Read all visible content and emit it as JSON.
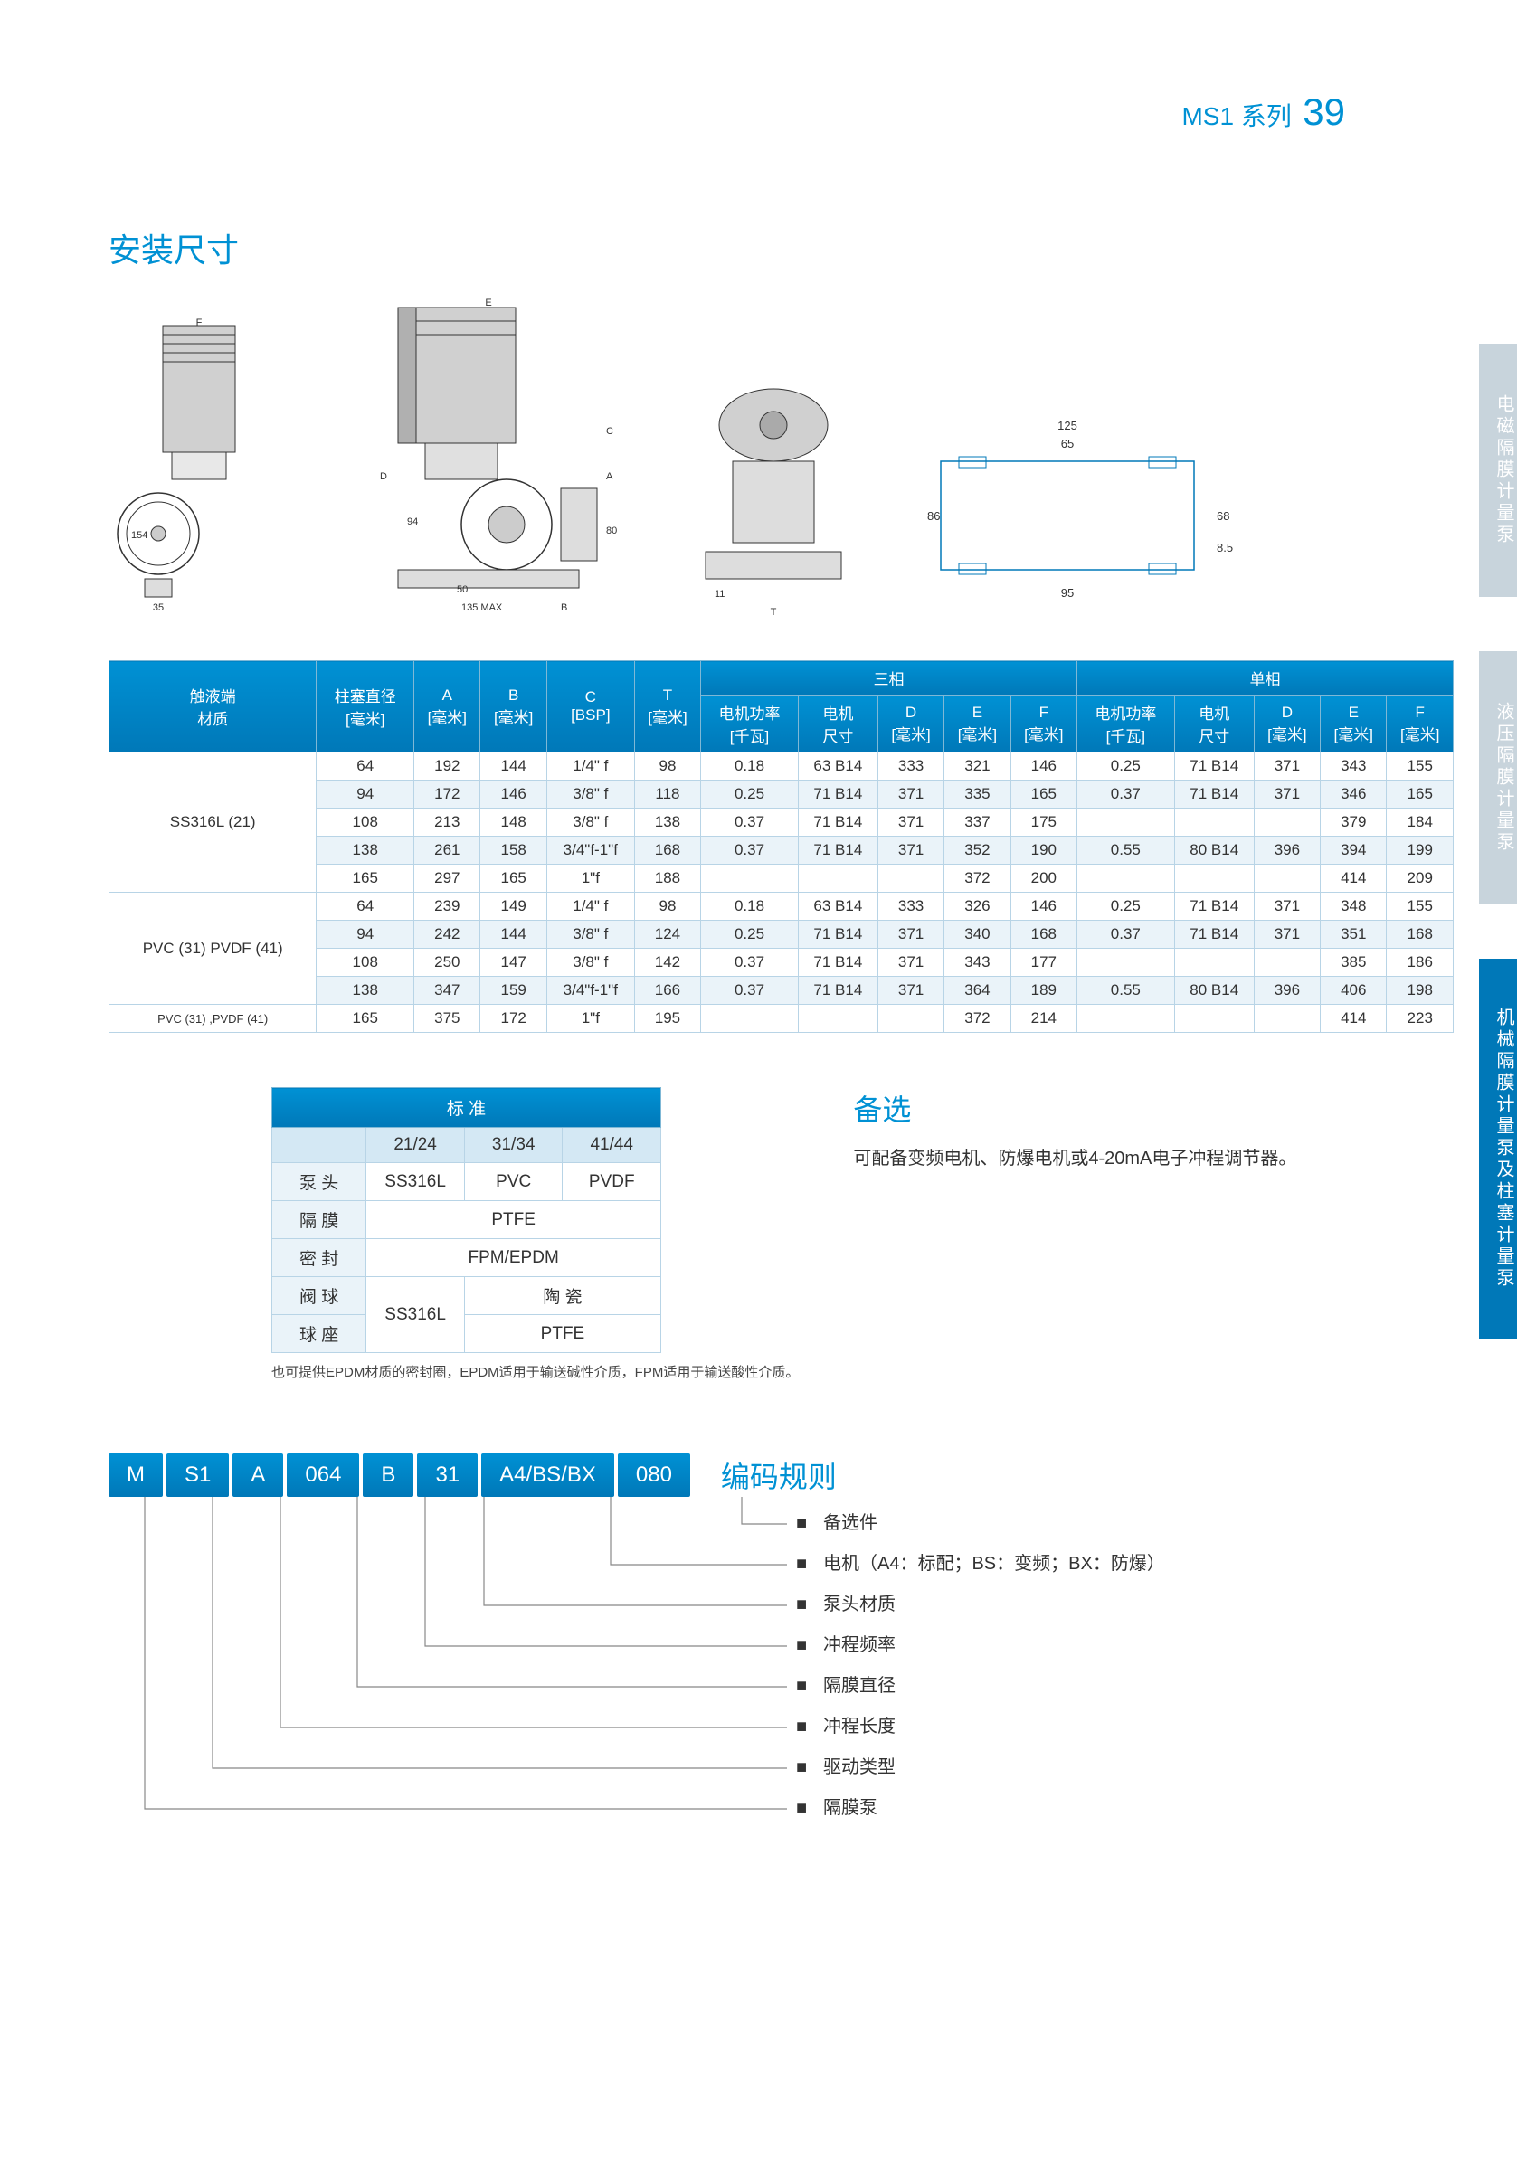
{
  "header": {
    "series": "MS1  系列",
    "page": "39"
  },
  "section_title": "安装尺寸",
  "side_tabs": [
    "电磁隔膜计量泵",
    "液压隔膜计量泵",
    "机械隔膜计量泵及柱塞计量泵"
  ],
  "main_table": {
    "headers": {
      "group_3phase": "三相",
      "group_1phase": "单相",
      "cols": [
        {
          "l1": "触液端",
          "l2": "材质"
        },
        {
          "l1": "柱塞直径",
          "l2": "[毫米]"
        },
        {
          "l1": "A",
          "l2": "[毫米]"
        },
        {
          "l1": "B",
          "l2": "[毫米]"
        },
        {
          "l1": "C",
          "l2": "[BSP]"
        },
        {
          "l1": "T",
          "l2": "[毫米]"
        },
        {
          "l1": "电机功率",
          "l2": "[千瓦]"
        },
        {
          "l1": "电机",
          "l2": "尺寸"
        },
        {
          "l1": "D",
          "l2": "[毫米]"
        },
        {
          "l1": "E",
          "l2": "[毫米]"
        },
        {
          "l1": "F",
          "l2": "[毫米]"
        },
        {
          "l1": "电机功率",
          "l2": "[千瓦]"
        },
        {
          "l1": "电机",
          "l2": "尺寸"
        },
        {
          "l1": "D",
          "l2": "[毫米]"
        },
        {
          "l1": "E",
          "l2": "[毫米]"
        },
        {
          "l1": "F",
          "l2": "[毫米]"
        }
      ]
    },
    "groups": [
      {
        "material": "SS316L (21)",
        "rows": [
          [
            "64",
            "192",
            "144",
            "1/4\" f",
            "98",
            "0.18",
            "63 B14",
            "333",
            "321",
            "146",
            "0.25",
            "71 B14",
            "371",
            "343",
            "155"
          ],
          [
            "94",
            "172",
            "146",
            "3/8\" f",
            "118",
            "0.25",
            "71 B14",
            "371",
            "335",
            "165",
            "0.37",
            "71 B14",
            "371",
            "346",
            "165"
          ],
          [
            "108",
            "213",
            "148",
            "3/8\" f",
            "138",
            "0.37",
            "71 B14",
            "371",
            "337",
            "175",
            "",
            "",
            "",
            "379",
            "184"
          ],
          [
            "138",
            "261",
            "158",
            "3/4\"f-1\"f",
            "168",
            "0.37",
            "71 B14",
            "371",
            "352",
            "190",
            "0.55",
            "80 B14",
            "396",
            "394",
            "199"
          ],
          [
            "165",
            "297",
            "165",
            "1\"f",
            "188",
            "",
            "",
            "",
            "372",
            "200",
            "",
            "",
            "",
            "414",
            "209"
          ]
        ]
      },
      {
        "material": "PVC (31) PVDF (41)",
        "rows": [
          [
            "64",
            "239",
            "149",
            "1/4\" f",
            "98",
            "0.18",
            "63 B14",
            "333",
            "326",
            "146",
            "0.25",
            "71 B14",
            "371",
            "348",
            "155"
          ],
          [
            "94",
            "242",
            "144",
            "3/8\" f",
            "124",
            "0.25",
            "71 B14",
            "371",
            "340",
            "168",
            "0.37",
            "71 B14",
            "371",
            "351",
            "168"
          ],
          [
            "108",
            "250",
            "147",
            "3/8\" f",
            "142",
            "0.37",
            "71 B14",
            "371",
            "343",
            "177",
            "",
            "",
            "",
            "385",
            "186"
          ],
          [
            "138",
            "347",
            "159",
            "3/4\"f-1\"f",
            "166",
            "0.37",
            "71 B14",
            "371",
            "364",
            "189",
            "0.55",
            "80 B14",
            "396",
            "406",
            "198"
          ]
        ]
      },
      {
        "material": "PVC (31) ,PVDF (41)",
        "rows": [
          [
            "165",
            "375",
            "172",
            "1\"f",
            "195",
            "",
            "",
            "",
            "372",
            "214",
            "",
            "",
            "",
            "414",
            "223"
          ]
        ]
      }
    ]
  },
  "std_table": {
    "title": "标  准",
    "cols": [
      "21/24",
      "31/34",
      "41/44"
    ],
    "rows": [
      {
        "label": "泵  头",
        "cells": [
          "SS316L",
          "PVC",
          "PVDF"
        ]
      },
      {
        "label": "隔  膜",
        "cells_merged": "PTFE"
      },
      {
        "label": "密  封",
        "cells_merged": "FPM/EPDM"
      },
      {
        "label": "阀  球",
        "cells": [
          "SS316L",
          "陶  瓷",
          "陶  瓷"
        ],
        "merge": [
          0,
          1,
          1
        ]
      },
      {
        "label": "球  座",
        "cells": [
          "SS316L",
          "PTFE",
          "PTFE"
        ],
        "merge": [
          0,
          1,
          1
        ]
      }
    ],
    "footnote": "也可提供EPDM材质的密封圈，EPDM适用于输送碱性介质，FPM适用于输送酸性介质。"
  },
  "options": {
    "title": "备选",
    "text": "可配备变频电机、防爆电机或4-20mA电子冲程调节器。"
  },
  "code": {
    "boxes": [
      "M",
      "S1",
      "A",
      "064",
      "B",
      "31",
      "A4/BS/BX",
      "080"
    ],
    "title": "编码规则",
    "legend": [
      "备选件",
      "电机（A4：标配；BS：变频；BX：防爆）",
      "泵头材质",
      "冲程频率",
      "隔膜直径",
      "冲程长度",
      "驱动类型",
      "隔膜泵"
    ]
  },
  "colors": {
    "primary": "#0091d4",
    "primary_dark": "#0078b8",
    "border": "#b8d4e6",
    "row_alt": "#eaf3f9",
    "tab_inactive": "#c8d4dc"
  }
}
